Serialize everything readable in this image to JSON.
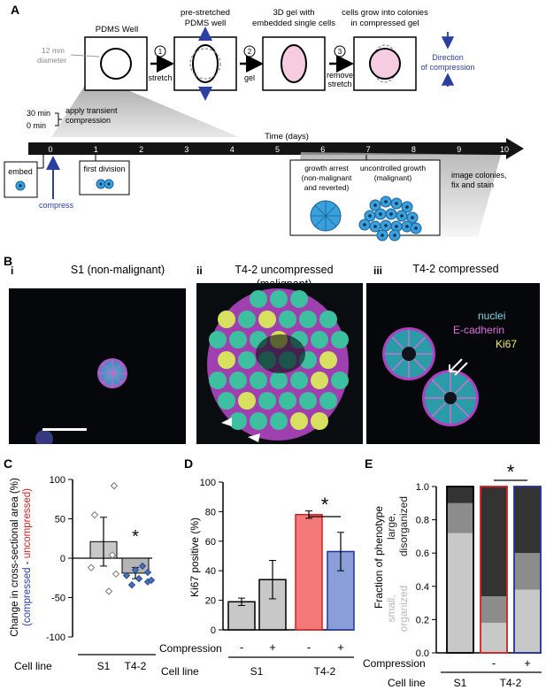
{
  "panelA": {
    "label": "A",
    "steps": [
      {
        "title": "PDMS Well"
      },
      {
        "title": "pre-stretched PDMS well"
      },
      {
        "title": "3D gel with embedded single cells"
      },
      {
        "title": "cells grow into colonies in compressed gel"
      }
    ],
    "diameter_note": "12 mm diameter",
    "arrows": [
      {
        "num": "1",
        "label": "stretch"
      },
      {
        "num": "2",
        "label": "gel"
      },
      {
        "num": "3",
        "label": "remove stretch"
      }
    ],
    "direction_label": "Direction of compression",
    "time_marks": [
      "30 min",
      "0 min"
    ],
    "apply_label": "apply transient compression",
    "axis_title": "Time (days)",
    "ticks": [
      "0",
      "1",
      "2",
      "3",
      "4",
      "5",
      "6",
      "7",
      "8",
      "9",
      "10"
    ],
    "embed": "embed",
    "compress": "compress",
    "first_division": "first division",
    "growth_arrest": "growth arrest (non-malignant and reverted)",
    "uncontrolled": "uncontrolled growth (malignant)",
    "image_colonies": "image colonies, fix and stain"
  },
  "panelB": {
    "label": "B",
    "images": [
      {
        "roman": "i",
        "title": "S1 (non-malignant)"
      },
      {
        "roman": "ii",
        "title": "T4-2 uncompressed (malignant)"
      },
      {
        "roman": "iii",
        "title": "T4-2 compressed"
      }
    ],
    "legend": [
      {
        "text": "nuclei",
        "color": "#7fd8e8"
      },
      {
        "text": "E-cadherin",
        "color": "#e070e0"
      },
      {
        "text": "Ki67",
        "color": "#f0f060"
      }
    ]
  },
  "chart_data": [
    {
      "panel": "C",
      "type": "bar",
      "ylabel": "Change in cross-sectional area (%)",
      "ylabel2": "(compressed - uncompressed)",
      "ylim": [
        -100,
        100
      ],
      "yticks": [
        "100",
        "50",
        "0",
        "-50",
        "-100"
      ],
      "categories": [
        "S1",
        "T4-2"
      ],
      "values": [
        21,
        -19
      ],
      "errors": [
        31,
        7
      ],
      "colors": [
        "#c8c8c8",
        "#b4b4b4"
      ],
      "points": [
        {
          "cat": 0,
          "y": 92,
          "color": "#ffffff"
        },
        {
          "cat": 0,
          "y": 55,
          "color": "#ffffff"
        },
        {
          "cat": 0,
          "y": 4,
          "color": "#ffffff"
        },
        {
          "cat": 0,
          "y": -12,
          "color": "#ffffff"
        },
        {
          "cat": 0,
          "y": -20,
          "color": "#ffffff"
        },
        {
          "cat": 0,
          "y": -42,
          "color": "#ffffff"
        },
        {
          "cat": 1,
          "y": -10,
          "color": "#4a6fb5"
        },
        {
          "cat": 1,
          "y": -18,
          "color": "#4a6fb5"
        },
        {
          "cat": 1,
          "y": -22,
          "color": "#4a6fb5"
        },
        {
          "cat": 1,
          "y": -26,
          "color": "#4a6fb5"
        },
        {
          "cat": 1,
          "y": -30,
          "color": "#4a6fb5"
        },
        {
          "cat": 1,
          "y": -34,
          "color": "#4a6fb5"
        },
        {
          "cat": 1,
          "y": -15,
          "color": "#4a6fb5"
        },
        {
          "cat": 1,
          "y": -28,
          "color": "#4a6fb5"
        }
      ],
      "star": "*",
      "row_label": "Cell line"
    },
    {
      "panel": "D",
      "type": "bar",
      "ylabel": "Ki67 positive (%)",
      "ylim": [
        0,
        100
      ],
      "yticks": [
        "100",
        "80",
        "60",
        "40",
        "20",
        "0"
      ],
      "categories": [
        "S1 -",
        "S1 +",
        "T4-2 -",
        "T4-2 +"
      ],
      "values": [
        19,
        34,
        78,
        53
      ],
      "errors": [
        2.5,
        13,
        2.5,
        13
      ],
      "fills": [
        "#c8c8c8",
        "#c8c8c8",
        "#f47a7a",
        "#8a9fd8"
      ],
      "strokes": [
        "#000000",
        "#000000",
        "#d62020",
        "#2030a0"
      ],
      "compression": [
        "-",
        "+",
        "-",
        "+"
      ],
      "cell_lines": [
        "S1",
        "T4-2"
      ],
      "star": "*",
      "comp_label": "Compression",
      "row_label": "Cell line"
    },
    {
      "panel": "E",
      "type": "bar",
      "ylabel_top": "Fraction of phenotype",
      "ylabel_large": "large, disorganized",
      "ylabel_small": "small, organized",
      "ylim": [
        0,
        1.0
      ],
      "yticks": [
        "1.0",
        "0.8",
        "0.6",
        "0.4",
        "0.2",
        "0.0"
      ],
      "categories": [
        "S1",
        "T4-2 -",
        "T4-2 +"
      ],
      "series": [
        {
          "values": [
            0.72,
            0.18,
            0.38
          ],
          "color": "#c8c8c8"
        },
        {
          "values": [
            0.18,
            0.16,
            0.22
          ],
          "color": "#8c8c8c"
        },
        {
          "values": [
            0.1,
            0.66,
            0.4
          ],
          "color": "#333333"
        }
      ],
      "strokes": [
        "#000000",
        "#d62020",
        "#2030a0"
      ],
      "compression": [
        "",
        "-",
        "+"
      ],
      "cell_lines": [
        "S1",
        "T4-2"
      ],
      "star": "*",
      "comp_label": "Compression",
      "row_label": "Cell line"
    }
  ]
}
